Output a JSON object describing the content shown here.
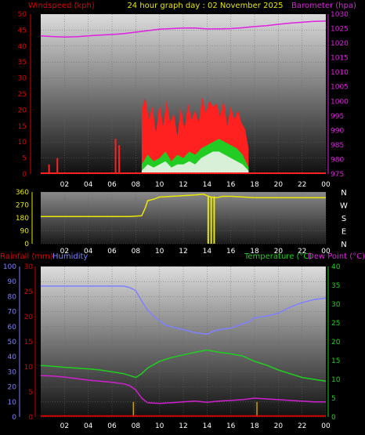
{
  "title": "24 hour graph day : 02 November 2025",
  "colors": {
    "background": "#000000",
    "wind_label": "#e00000",
    "wind_gust": "#ff2020",
    "wind_avg": "#22cc22",
    "wind_mean": "#d8f0d8",
    "barometer": "#e020e0",
    "direction": "#e8e800",
    "humidity": "#8080ff",
    "temperature": "#20d020",
    "dewpoint": "#d020d0",
    "rainfall": "#d00000",
    "rain_bars": "#c8a000",
    "grid": "#666666",
    "white_axis": "#ffffff"
  },
  "x_ticks": [
    "02",
    "04",
    "06",
    "08",
    "10",
    "12",
    "14",
    "16",
    "18",
    "20",
    "22",
    "00"
  ],
  "chart_data": [
    {
      "type": "line",
      "id": "wind_baro",
      "left_axis_label": "Windspeed (kph)",
      "right_axis_label": "Barometer (hpa)",
      "ylim_left": [
        0,
        50
      ],
      "yticks_left": [
        "0",
        "5",
        "10",
        "15",
        "20",
        "25",
        "30",
        "35",
        "40",
        "45",
        "50"
      ],
      "ylim_right": [
        975,
        1030
      ],
      "yticks_right": [
        "975",
        "980",
        "985",
        "990",
        "995",
        "1000",
        "1005",
        "1010",
        "1015",
        "1020",
        "1025",
        "1030"
      ],
      "x_hours": [
        0,
        24
      ],
      "series": [
        {
          "axis": "right",
          "x": [
            0,
            1,
            2,
            3,
            4,
            5,
            6,
            7,
            8,
            9,
            10,
            11,
            12,
            13,
            14,
            15,
            16,
            17,
            18,
            19,
            20,
            21,
            22,
            23,
            24
          ],
          "values": [
            1022.5,
            1022.3,
            1022.1,
            1022.2,
            1022.5,
            1022.8,
            1023.0,
            1023.3,
            1023.8,
            1024.3,
            1024.8,
            1025.0,
            1025.2,
            1025.2,
            1024.9,
            1024.9,
            1025.0,
            1025.3,
            1025.7,
            1026.0,
            1026.5,
            1026.9,
            1027.2,
            1027.5,
            1027.6
          ]
        },
        {
          "axis": "left",
          "kind": "gust",
          "x": [
            0.7,
            1.4,
            6.3,
            6.6,
            8.5,
            8.8,
            9.1,
            9.4,
            9.7,
            10.0,
            10.3,
            10.6,
            10.9,
            11.2,
            11.5,
            11.8,
            12.1,
            12.4,
            12.7,
            13.0,
            13.3,
            13.6,
            13.9,
            14.2,
            14.5,
            14.8,
            15.1,
            15.4,
            15.7,
            16.0,
            16.3,
            16.6,
            16.9,
            17.2,
            17.5
          ],
          "values": [
            3,
            5,
            11,
            9,
            20,
            24,
            17,
            21,
            13,
            22,
            15,
            23,
            16,
            19,
            12,
            21,
            14,
            22,
            17,
            20,
            16,
            24,
            19,
            23,
            21,
            22,
            18,
            23,
            15,
            21,
            17,
            20,
            16,
            14,
            8
          ]
        },
        {
          "axis": "left",
          "kind": "average",
          "x": [
            8.5,
            9.0,
            9.5,
            10.0,
            10.5,
            11.0,
            11.5,
            12.0,
            12.5,
            13.0,
            13.5,
            14.0,
            14.5,
            15.0,
            15.5,
            16.0,
            16.5,
            17.0,
            17.5
          ],
          "values": [
            3,
            6,
            4,
            5,
            7,
            4,
            6,
            5,
            7,
            6,
            8,
            9,
            10,
            11,
            10,
            9,
            8,
            6,
            2
          ]
        },
        {
          "axis": "left",
          "kind": "mean",
          "x": [
            8.5,
            9.0,
            9.5,
            10.0,
            10.5,
            11.0,
            11.5,
            12.0,
            12.5,
            13.0,
            13.5,
            14.0,
            14.5,
            15.0,
            15.5,
            16.0,
            16.5,
            17.0,
            17.5
          ],
          "values": [
            1,
            3,
            2,
            3,
            4,
            2,
            3,
            3,
            4,
            3,
            5,
            6,
            7,
            7,
            6,
            5,
            4,
            3,
            1
          ]
        }
      ]
    },
    {
      "type": "line",
      "id": "direction",
      "ylim_left": [
        0,
        360
      ],
      "yticks_left": [
        "0",
        "90",
        "180",
        "270",
        "360"
      ],
      "compass": [
        "N",
        "W",
        "S",
        "E",
        "N"
      ],
      "x_hours": [
        0,
        24
      ],
      "series": [
        {
          "name": "Wind direction",
          "x": [
            0,
            7.5,
            8.5,
            8.8,
            9.0,
            9.5,
            10,
            11,
            12,
            13,
            13.7,
            14.3,
            14.8,
            15.3,
            16,
            17,
            18,
            20,
            22,
            24
          ],
          "values": [
            190,
            190,
            195,
            250,
            300,
            310,
            325,
            330,
            335,
            340,
            345,
            325,
            320,
            330,
            330,
            325,
            320,
            320,
            320,
            320
          ]
        },
        {
          "name": "drops",
          "x": [
            14.1,
            14.35,
            14.6
          ],
          "values": [
            0,
            0,
            0
          ]
        }
      ]
    },
    {
      "type": "line",
      "id": "temp_hum_rain",
      "left_axis_label": "Rainfall (mm)",
      "left2_axis_label": "Humidity",
      "right_axis_label": "Temperature (°C)",
      "right2_axis_label": "Dew Point (°C)",
      "ylim_humidity": [
        0,
        100
      ],
      "yticks_humidity": [
        "0",
        "10",
        "20",
        "30",
        "40",
        "50",
        "60",
        "70",
        "80",
        "90",
        "100"
      ],
      "ylim_rain": [
        0,
        30
      ],
      "yticks_rain": [
        "0",
        "5",
        "10",
        "15",
        "20",
        "25",
        "30"
      ],
      "ylim_temp": [
        0,
        40
      ],
      "yticks_temp": [
        "0",
        "5",
        "10",
        "15",
        "20",
        "25",
        "30",
        "35",
        "40"
      ],
      "x_hours": [
        0,
        24
      ],
      "series": [
        {
          "name": "Humidity",
          "x": [
            0,
            1,
            2,
            3,
            4,
            5,
            6,
            7,
            7.5,
            8,
            8.5,
            9,
            9.5,
            10,
            10.5,
            11,
            12,
            13,
            14,
            14.5,
            15,
            16,
            17,
            17.5,
            18,
            19,
            20,
            21,
            22,
            23,
            24
          ],
          "values": [
            87,
            87,
            87,
            87,
            87,
            87,
            87,
            87,
            86,
            84,
            77,
            71,
            67,
            64,
            61,
            60,
            58,
            56,
            55,
            57,
            58,
            59,
            62,
            63,
            66,
            67,
            69,
            73,
            76,
            78,
            79
          ]
        },
        {
          "name": "Temperature",
          "x": [
            0,
            1,
            2,
            3,
            4,
            5,
            6,
            7,
            8,
            8.5,
            9,
            10,
            11,
            12,
            13,
            14,
            15,
            16,
            17,
            18,
            19,
            20,
            21,
            22,
            23,
            24
          ],
          "values": [
            13.7,
            13.5,
            13.2,
            13.0,
            12.8,
            12.5,
            12.0,
            11.5,
            10.5,
            11.5,
            13.0,
            14.8,
            15.8,
            16.5,
            17.2,
            17.8,
            17.2,
            16.8,
            16.2,
            14.8,
            13.8,
            12.5,
            11.5,
            10.5,
            10.0,
            9.5
          ]
        },
        {
          "name": "Dew point",
          "x": [
            0,
            1,
            2,
            3,
            4,
            5,
            6,
            7,
            7.5,
            8,
            8.5,
            9,
            10,
            11,
            12,
            13,
            14,
            15,
            16,
            17,
            18,
            19,
            20,
            21,
            22,
            23,
            24
          ],
          "values": [
            11.0,
            10.9,
            10.6,
            10.2,
            9.8,
            9.5,
            9.2,
            8.8,
            8.3,
            7.2,
            5.0,
            3.8,
            3.6,
            3.8,
            4.0,
            4.2,
            3.9,
            4.2,
            4.4,
            4.6,
            5.0,
            4.8,
            4.6,
            4.4,
            4.2,
            4.0,
            4.0
          ]
        },
        {
          "name": "Rainfall",
          "x": [
            0,
            24
          ],
          "values": [
            0.2,
            0.2
          ]
        },
        {
          "name": "Rain bars",
          "x": [
            7.8,
            18.2
          ],
          "values": [
            3,
            3
          ]
        }
      ]
    }
  ]
}
